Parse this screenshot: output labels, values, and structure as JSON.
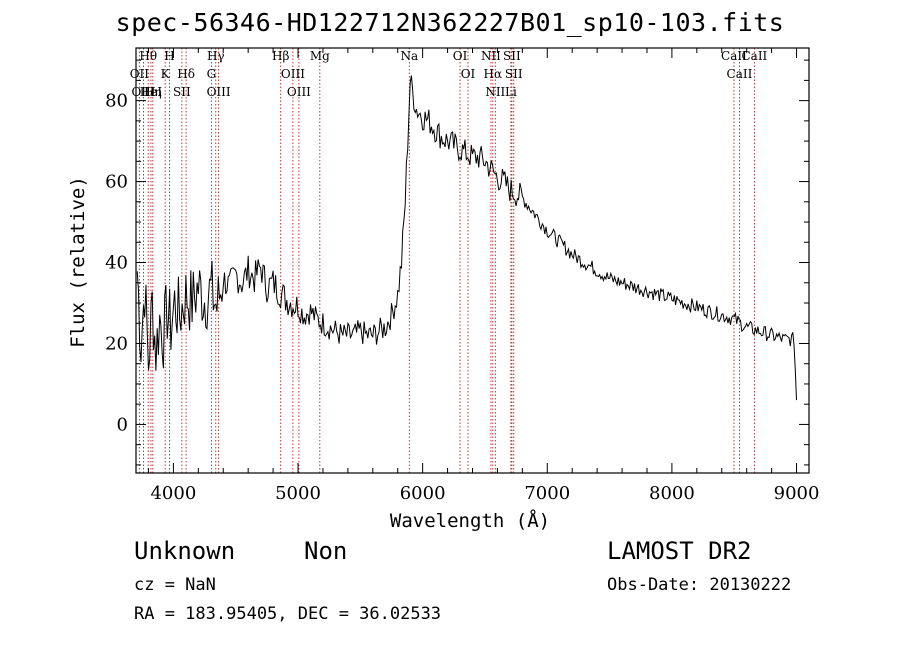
{
  "header": {
    "title": "spec-56346-HD122712N362227B01_sp10-103.fits"
  },
  "info": {
    "object_class": "Unknown",
    "object_subclass": "Non",
    "survey": "LAMOST DR2",
    "cz": "cz = NaN",
    "obs_date": "Obs-Date: 20130222",
    "radec": "RA = 183.95405, DEC =  36.02533"
  },
  "chart_data": {
    "type": "line",
    "title": "spec-56346-HD122712N362227B01_sp10-103.fits",
    "xlabel": "Wavelength (Å)",
    "ylabel": "Flux (relative)",
    "xlim": [
      3700,
      9100
    ],
    "ylim": [
      -12,
      93
    ],
    "x_ticks": [
      4000,
      5000,
      6000,
      7000,
      8000,
      9000
    ],
    "y_ticks": [
      0,
      20,
      40,
      60,
      80
    ],
    "grid": false,
    "legend": "none",
    "line_color": "#000000",
    "marker_color": "#b22222",
    "series": [
      {
        "x": [
          3710,
          3740,
          3770,
          3800,
          3830,
          3860,
          3890,
          3920,
          3950,
          3980,
          4010,
          4050,
          4100,
          4150,
          4200,
          4250,
          4300,
          4350,
          4400,
          4450,
          4500,
          4550,
          4600,
          4650,
          4700,
          4750,
          4800,
          4850,
          4900,
          4950,
          5000,
          5050,
          5100,
          5150,
          5200,
          5250,
          5300,
          5350,
          5400,
          5450,
          5500,
          5550,
          5600,
          5650,
          5700,
          5750,
          5800,
          5830,
          5860,
          5880,
          5900,
          5920,
          5950,
          6000,
          6050,
          6100,
          6150,
          6200,
          6250,
          6300,
          6350,
          6400,
          6450,
          6500,
          6550,
          6600,
          6650,
          6700,
          6750,
          6800,
          6850,
          6900,
          6950,
          7000,
          7100,
          7200,
          7300,
          7400,
          7500,
          7600,
          7700,
          7800,
          7900,
          8000,
          8100,
          8200,
          8300,
          8400,
          8500,
          8600,
          8700,
          8800,
          8900,
          8980,
          9000
        ],
        "y": [
          38,
          20,
          34,
          15,
          30,
          18,
          26,
          22,
          28,
          24,
          30,
          27,
          32,
          30,
          34,
          31,
          33,
          29,
          36,
          34,
          37,
          35,
          38,
          36,
          39,
          34,
          35,
          33,
          31,
          30,
          29,
          27,
          28,
          26,
          25,
          24,
          23,
          22,
          22,
          22,
          23,
          22,
          22,
          23,
          24,
          27,
          32,
          40,
          55,
          70,
          85,
          82,
          78,
          76,
          75,
          73,
          71,
          70,
          69,
          68,
          67,
          66,
          66,
          65,
          63,
          61,
          60,
          58,
          57,
          56,
          54,
          52,
          50,
          48,
          45,
          42,
          40,
          38,
          36,
          35,
          34,
          33,
          32,
          31,
          30,
          29,
          28,
          27,
          26,
          24,
          23,
          22,
          21,
          21,
          6
        ]
      }
    ],
    "line_markers": [
      {
        "label": "Hθ",
        "x": 3798
      },
      {
        "label": "OII",
        "x": 3727
      },
      {
        "label": "OIII",
        "x": 3760
      },
      {
        "label": "HeI",
        "x": 3820
      },
      {
        "label": "Hη",
        "x": 3835
      },
      {
        "label": "K",
        "x": 3934
      },
      {
        "label": "H",
        "x": 3969
      },
      {
        "label": "SII",
        "x": 4068
      },
      {
        "label": "Hδ",
        "x": 4102
      },
      {
        "label": "Hγ",
        "x": 4340
      },
      {
        "label": "G",
        "x": 4305
      },
      {
        "label": "OIII",
        "x": 4363
      },
      {
        "label": "Hβ",
        "x": 4861
      },
      {
        "label": "OIII",
        "x": 4959
      },
      {
        "label": "OIII",
        "x": 5007
      },
      {
        "label": "Mg",
        "x": 5175
      },
      {
        "label": "Na",
        "x": 5893
      },
      {
        "label": "OI",
        "x": 6300
      },
      {
        "label": "OI",
        "x": 6364
      },
      {
        "label": "NII",
        "x": 6548
      },
      {
        "label": "Hα",
        "x": 6563
      },
      {
        "label": "NII",
        "x": 6583
      },
      {
        "label": "Li",
        "x": 6708
      },
      {
        "label": "SII",
        "x": 6716
      },
      {
        "label": "SII",
        "x": 6731
      },
      {
        "label": "CaII",
        "x": 8498
      },
      {
        "label": "CaII",
        "x": 8542
      },
      {
        "label": "CaII",
        "x": 8662
      }
    ]
  }
}
